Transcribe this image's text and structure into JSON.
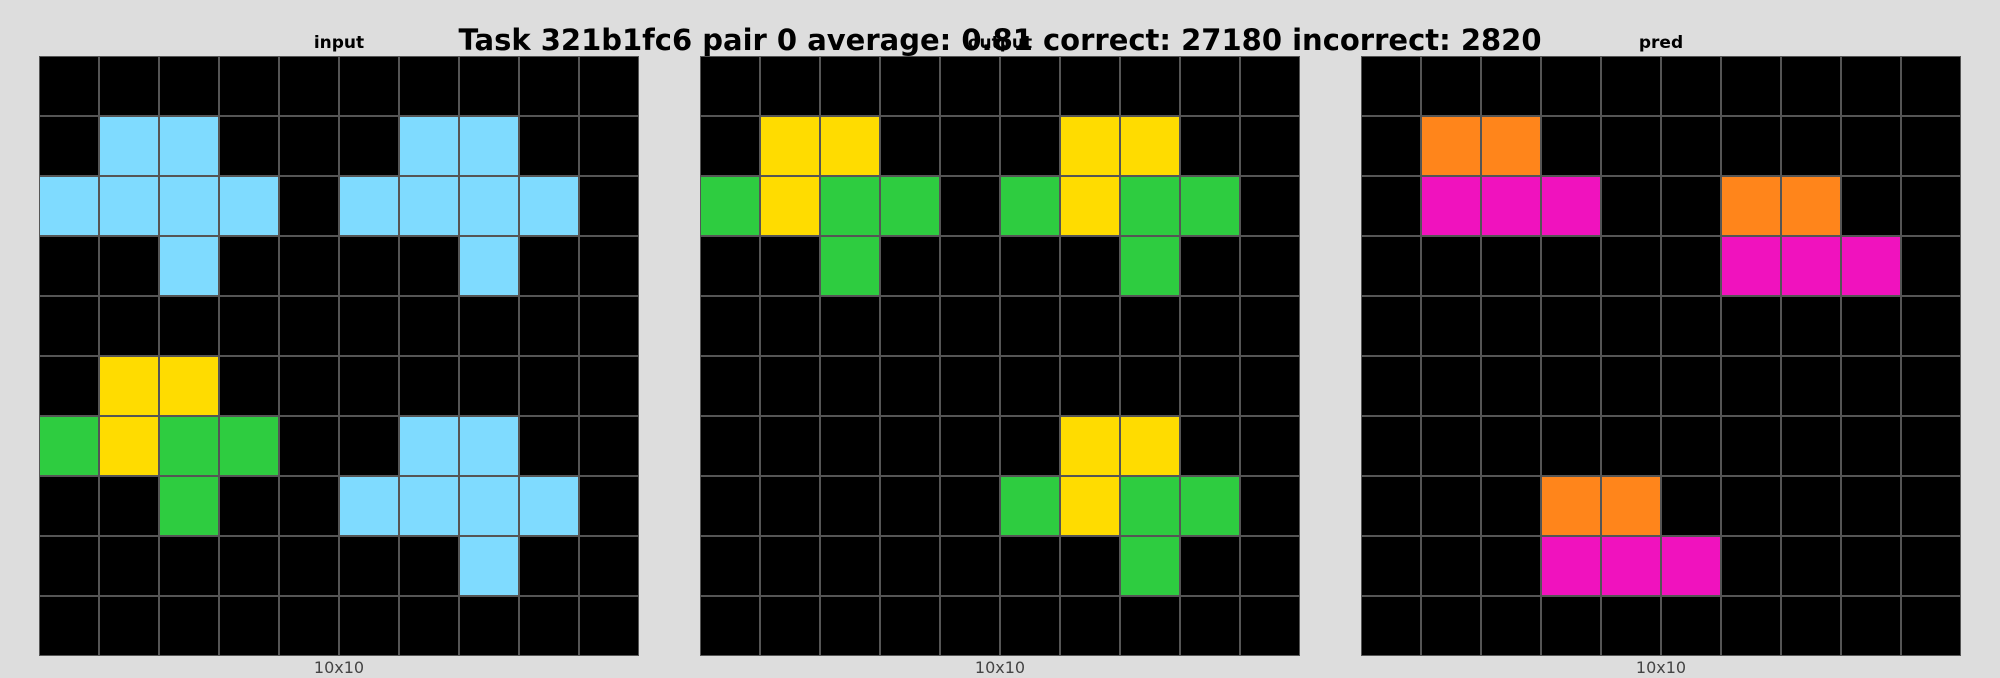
{
  "title": "Task 321b1fc6 pair 0 average: 0.81 correct: 27180 incorrect: 2820",
  "palette": {
    "0": "#000000",
    "3": "#2ecc40",
    "4": "#ffdc00",
    "6": "#f012be",
    "7": "#ff851b",
    "8": "#7fdbff"
  },
  "panels": [
    {
      "label": "input",
      "size_label": "10x10",
      "grid": [
        [
          0,
          0,
          0,
          0,
          0,
          0,
          0,
          0,
          0,
          0
        ],
        [
          0,
          8,
          8,
          0,
          0,
          0,
          8,
          8,
          0,
          0
        ],
        [
          8,
          8,
          8,
          8,
          0,
          8,
          8,
          8,
          8,
          0
        ],
        [
          0,
          0,
          8,
          0,
          0,
          0,
          0,
          8,
          0,
          0
        ],
        [
          0,
          0,
          0,
          0,
          0,
          0,
          0,
          0,
          0,
          0
        ],
        [
          0,
          4,
          4,
          0,
          0,
          0,
          0,
          0,
          0,
          0
        ],
        [
          3,
          4,
          3,
          3,
          0,
          0,
          8,
          8,
          0,
          0
        ],
        [
          0,
          0,
          3,
          0,
          0,
          8,
          8,
          8,
          8,
          0
        ],
        [
          0,
          0,
          0,
          0,
          0,
          0,
          0,
          8,
          0,
          0
        ],
        [
          0,
          0,
          0,
          0,
          0,
          0,
          0,
          0,
          0,
          0
        ]
      ]
    },
    {
      "label": "output",
      "size_label": "10x10",
      "grid": [
        [
          0,
          0,
          0,
          0,
          0,
          0,
          0,
          0,
          0,
          0
        ],
        [
          0,
          4,
          4,
          0,
          0,
          0,
          4,
          4,
          0,
          0
        ],
        [
          3,
          4,
          3,
          3,
          0,
          3,
          4,
          3,
          3,
          0
        ],
        [
          0,
          0,
          3,
          0,
          0,
          0,
          0,
          3,
          0,
          0
        ],
        [
          0,
          0,
          0,
          0,
          0,
          0,
          0,
          0,
          0,
          0
        ],
        [
          0,
          0,
          0,
          0,
          0,
          0,
          0,
          0,
          0,
          0
        ],
        [
          0,
          0,
          0,
          0,
          0,
          0,
          4,
          4,
          0,
          0
        ],
        [
          0,
          0,
          0,
          0,
          0,
          3,
          4,
          3,
          3,
          0
        ],
        [
          0,
          0,
          0,
          0,
          0,
          0,
          0,
          3,
          0,
          0
        ],
        [
          0,
          0,
          0,
          0,
          0,
          0,
          0,
          0,
          0,
          0
        ]
      ]
    },
    {
      "label": "pred",
      "size_label": "10x10",
      "grid": [
        [
          0,
          0,
          0,
          0,
          0,
          0,
          0,
          0,
          0,
          0
        ],
        [
          0,
          7,
          7,
          0,
          0,
          0,
          0,
          0,
          0,
          0
        ],
        [
          0,
          6,
          6,
          6,
          0,
          0,
          7,
          7,
          0,
          0
        ],
        [
          0,
          0,
          0,
          0,
          0,
          0,
          6,
          6,
          6,
          0
        ],
        [
          0,
          0,
          0,
          0,
          0,
          0,
          0,
          0,
          0,
          0
        ],
        [
          0,
          0,
          0,
          0,
          0,
          0,
          0,
          0,
          0,
          0
        ],
        [
          0,
          0,
          0,
          0,
          0,
          0,
          0,
          0,
          0,
          0
        ],
        [
          0,
          0,
          0,
          7,
          7,
          0,
          0,
          0,
          0,
          0
        ],
        [
          0,
          0,
          0,
          6,
          6,
          6,
          0,
          0,
          0,
          0
        ],
        [
          0,
          0,
          0,
          0,
          0,
          0,
          0,
          0,
          0,
          0
        ]
      ]
    }
  ]
}
